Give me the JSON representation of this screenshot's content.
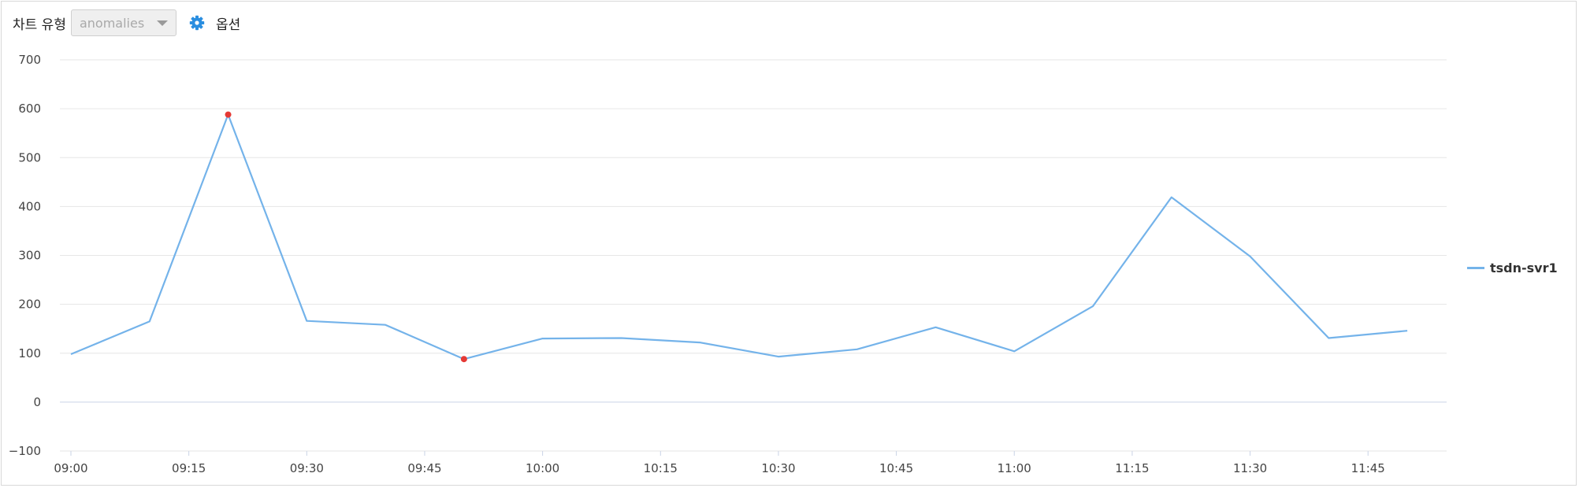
{
  "toolbar": {
    "chart_type_label": "차트 유형",
    "chart_type_value": "anomalies",
    "options_label": "옵션",
    "options_icon": "gear-icon",
    "accent_color": "#2a8ee0"
  },
  "legend": {
    "label": "tsdn-svr1",
    "placement": "right"
  },
  "chart_data": {
    "type": "line",
    "title": "",
    "xlabel": "",
    "ylabel": "",
    "ylim": [
      -100,
      700
    ],
    "yticks": [
      -100,
      0,
      100,
      200,
      300,
      400,
      500,
      600,
      700
    ],
    "xlim": [
      "09:00",
      "11:55"
    ],
    "xticks": [
      "09:00",
      "09:15",
      "09:30",
      "09:45",
      "10:00",
      "10:15",
      "10:30",
      "10:45",
      "11:00",
      "11:15",
      "11:30",
      "11:45"
    ],
    "grid": true,
    "series": [
      {
        "name": "tsdn-svr1",
        "color": "#74b3ea",
        "x": [
          "09:00",
          "09:10",
          "09:20",
          "09:30",
          "09:40",
          "09:50",
          "10:00",
          "10:10",
          "10:20",
          "10:30",
          "10:40",
          "10:50",
          "11:00",
          "11:10",
          "11:20",
          "11:30",
          "11:40",
          "11:50"
        ],
        "values": [
          98,
          165,
          588,
          166,
          158,
          88,
          130,
          131,
          122,
          93,
          108,
          153,
          104,
          196,
          419,
          298,
          131,
          146
        ]
      }
    ],
    "anomalies": {
      "color": "#e53935",
      "x": [
        "09:20",
        "09:50"
      ],
      "values": [
        588,
        88
      ]
    }
  }
}
